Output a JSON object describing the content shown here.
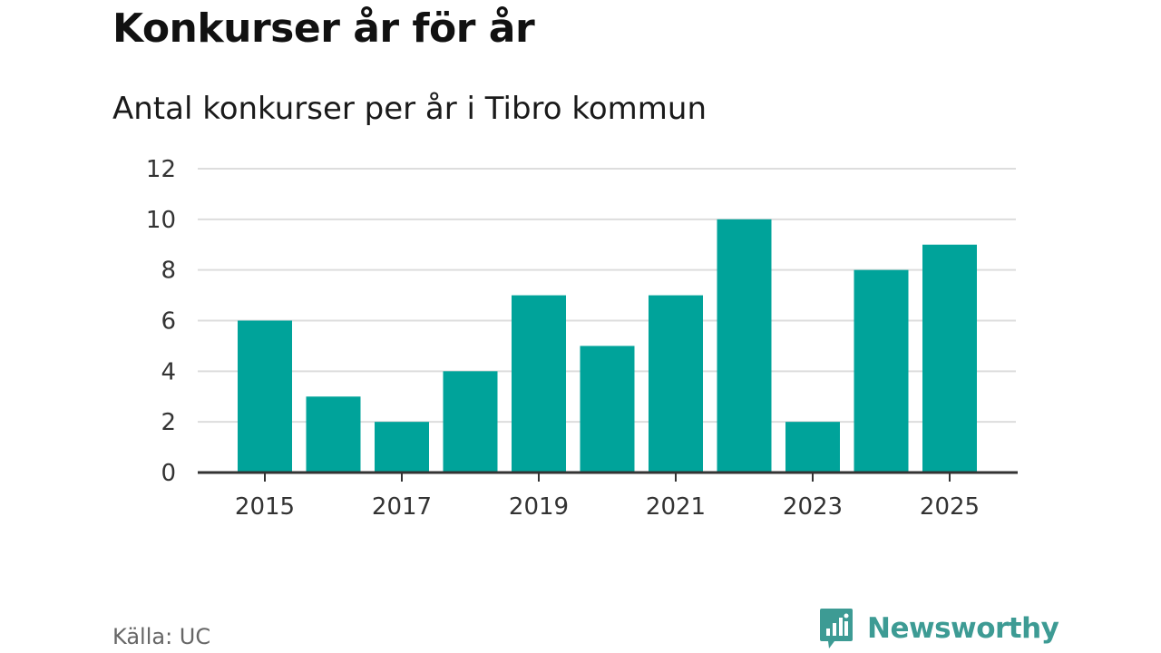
{
  "header": {
    "title": "Konkurser år för år",
    "subtitle": "Antal konkurser per år i Tibro kommun"
  },
  "footer": {
    "source": "Källa: UC",
    "brand": "Newsworthy"
  },
  "colors": {
    "bar": "#00a39a",
    "grid": "#dddddd",
    "axis": "#333333",
    "brand": "#3d9b94"
  },
  "chart_data": {
    "type": "bar",
    "title": "Konkurser år för år",
    "subtitle": "Antal konkurser per år i Tibro kommun",
    "xlabel": "",
    "ylabel": "",
    "categories": [
      "2015",
      "2016",
      "2017",
      "2018",
      "2019",
      "2020",
      "2021",
      "2022",
      "2023",
      "2024",
      "2025"
    ],
    "values": [
      6,
      3,
      2,
      4,
      7,
      5,
      7,
      10,
      2,
      8,
      9
    ],
    "x_tick_labels": [
      "2015",
      "2017",
      "2019",
      "2021",
      "2023",
      "2025"
    ],
    "y_tick_labels": [
      "0",
      "2",
      "4",
      "6",
      "8",
      "10",
      "12"
    ],
    "ylim": [
      0,
      12
    ],
    "grid": true,
    "legend": "none"
  }
}
